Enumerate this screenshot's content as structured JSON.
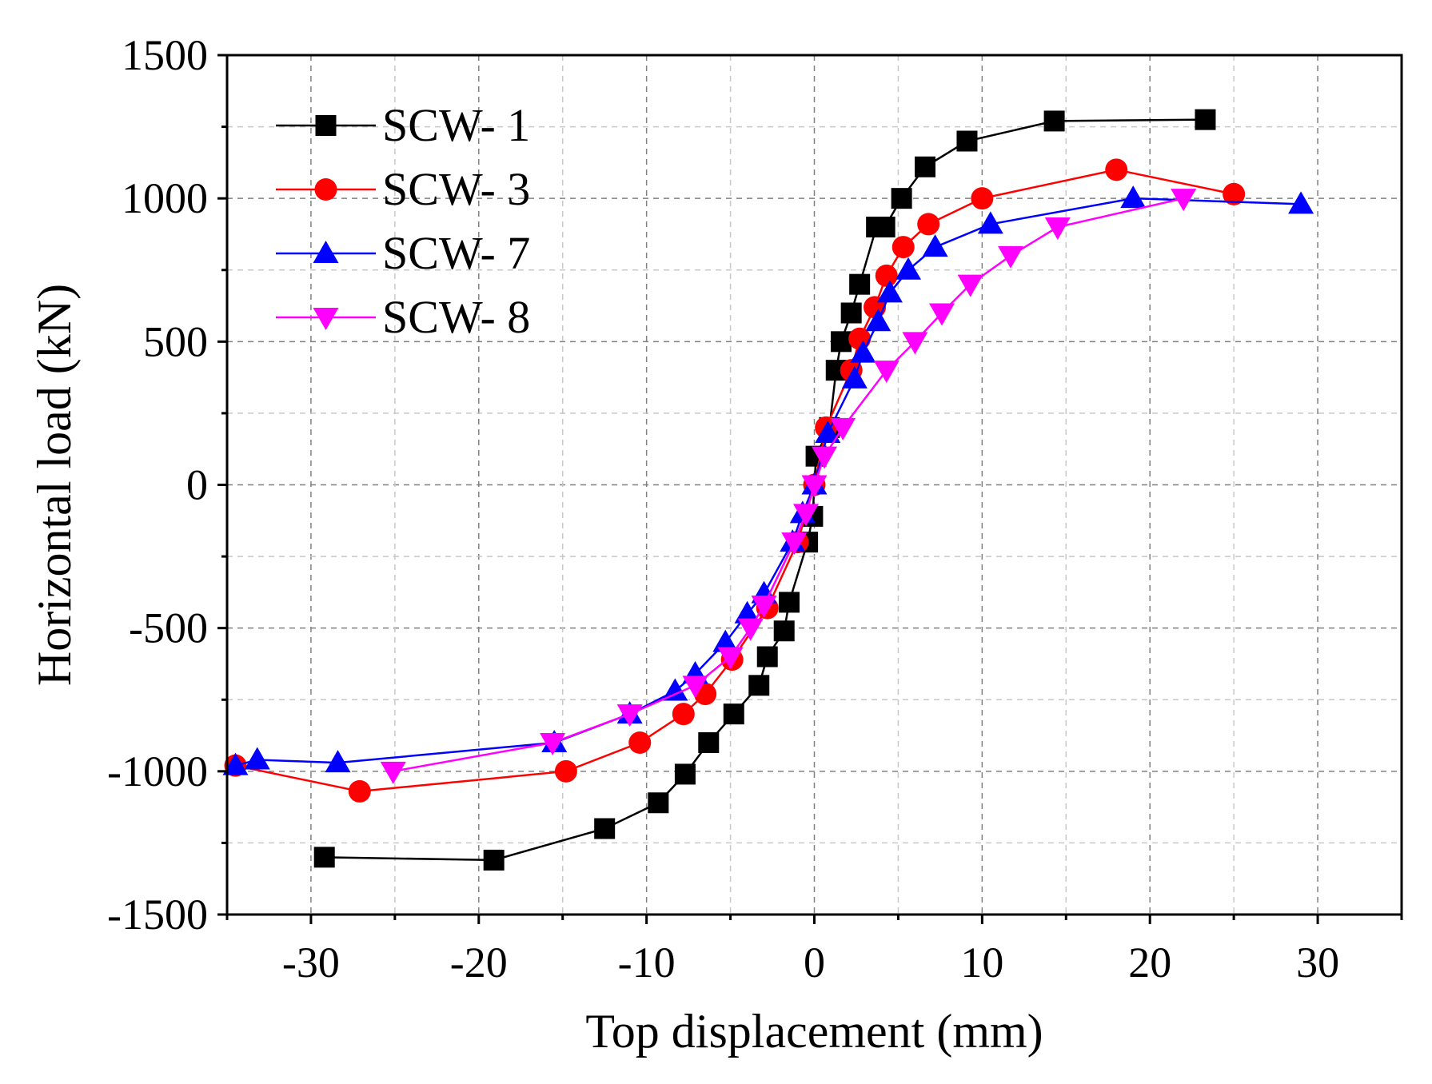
{
  "chart_data": {
    "type": "line",
    "title": "",
    "xlabel": "Top displacement (mm)",
    "ylabel": "Horizontal load (kN)",
    "xlim": [
      -35,
      35
    ],
    "ylim": [
      -1500,
      1500
    ],
    "grid": true,
    "legend_position": "top-left",
    "x_ticks": [
      -30,
      -20,
      -10,
      0,
      10,
      20,
      30
    ],
    "y_ticks": [
      1500,
      1000,
      500,
      0,
      -500,
      -1000,
      -1500
    ],
    "series": [
      {
        "name": "SCW- 1",
        "color": "#000000",
        "marker": "square",
        "points": [
          [
            -29.2,
            -1300
          ],
          [
            -19.1,
            -1310
          ],
          [
            -12.5,
            -1200
          ],
          [
            -9.3,
            -1110
          ],
          [
            -7.7,
            -1010
          ],
          [
            -6.3,
            -900
          ],
          [
            -4.8,
            -800
          ],
          [
            -3.3,
            -700
          ],
          [
            -2.8,
            -600
          ],
          [
            -1.8,
            -510
          ],
          [
            -1.5,
            -410
          ],
          [
            -0.4,
            -200
          ],
          [
            -0.1,
            -110
          ],
          [
            0.1,
            100
          ],
          [
            0.9,
            200
          ],
          [
            1.3,
            400
          ],
          [
            1.6,
            500
          ],
          [
            2.2,
            600
          ],
          [
            2.7,
            700
          ],
          [
            3.7,
            900
          ],
          [
            4.2,
            900
          ],
          [
            5.2,
            1000
          ],
          [
            6.6,
            1110
          ],
          [
            9.1,
            1200
          ],
          [
            14.3,
            1270
          ],
          [
            23.3,
            1275
          ]
        ]
      },
      {
        "name": "SCW- 3",
        "color": "#ff0000",
        "marker": "circle",
        "points": [
          [
            -34.5,
            -980
          ],
          [
            -27.1,
            -1070
          ],
          [
            -14.8,
            -1000
          ],
          [
            -10.4,
            -900
          ],
          [
            -7.8,
            -800
          ],
          [
            -6.5,
            -730
          ],
          [
            -4.9,
            -610
          ],
          [
            -2.8,
            -430
          ],
          [
            -1.0,
            -200
          ],
          [
            0.0,
            0
          ],
          [
            0.7,
            200
          ],
          [
            2.2,
            400
          ],
          [
            2.7,
            510
          ],
          [
            3.6,
            620
          ],
          [
            4.3,
            730
          ],
          [
            5.3,
            830
          ],
          [
            6.8,
            910
          ],
          [
            10.0,
            1000
          ],
          [
            18.0,
            1100
          ],
          [
            25.0,
            1015
          ]
        ]
      },
      {
        "name": "SCW- 7",
        "color": "#0000ff",
        "marker": "triangle-up",
        "points": [
          [
            -34.5,
            -980
          ],
          [
            -33.2,
            -960
          ],
          [
            -28.4,
            -970
          ],
          [
            -15.5,
            -900
          ],
          [
            -11.0,
            -800
          ],
          [
            -8.3,
            -720
          ],
          [
            -7.1,
            -660
          ],
          [
            -5.3,
            -550
          ],
          [
            -4.0,
            -450
          ],
          [
            -3.0,
            -380
          ],
          [
            -1.3,
            -200
          ],
          [
            -0.7,
            -100
          ],
          [
            0.0,
            0
          ],
          [
            0.8,
            180
          ],
          [
            2.4,
            370
          ],
          [
            2.9,
            460
          ],
          [
            3.8,
            570
          ],
          [
            4.5,
            670
          ],
          [
            5.6,
            750
          ],
          [
            7.2,
            830
          ],
          [
            10.5,
            910
          ],
          [
            19.0,
            1000
          ],
          [
            29.0,
            980
          ]
        ]
      },
      {
        "name": "SCW- 8",
        "color": "#ff00ff",
        "marker": "triangle-down",
        "points": [
          [
            -25.1,
            -1000
          ],
          [
            -15.6,
            -900
          ],
          [
            -11.0,
            -800
          ],
          [
            -7.1,
            -700
          ],
          [
            -5.0,
            -600
          ],
          [
            -3.8,
            -500
          ],
          [
            -3.0,
            -420
          ],
          [
            -1.2,
            -200
          ],
          [
            -0.5,
            -100
          ],
          [
            0.0,
            0
          ],
          [
            0.6,
            100
          ],
          [
            1.7,
            200
          ],
          [
            4.3,
            400
          ],
          [
            6.0,
            500
          ],
          [
            7.6,
            600
          ],
          [
            9.3,
            700
          ],
          [
            11.7,
            800
          ],
          [
            14.5,
            900
          ],
          [
            22.0,
            1000
          ]
        ]
      }
    ]
  }
}
